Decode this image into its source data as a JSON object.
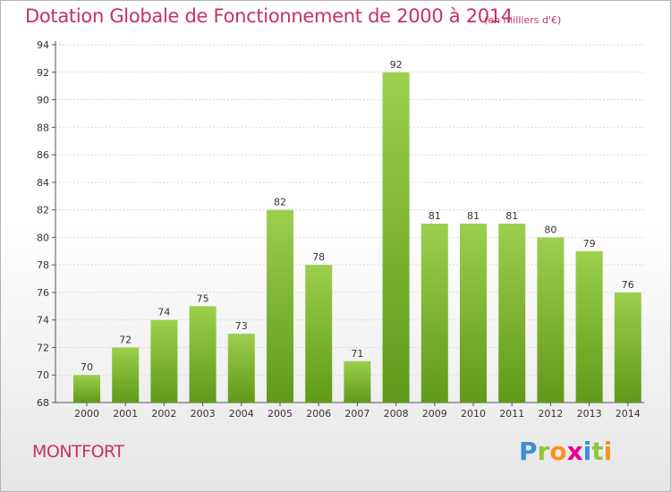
{
  "chart_data": {
    "type": "bar",
    "title": "Dotation Globale de Fonctionnement de 2000 à 2014",
    "subtitle": "(en milliers d'€)",
    "categories": [
      "2000",
      "2001",
      "2002",
      "2003",
      "2004",
      "2005",
      "2006",
      "2007",
      "2008",
      "2009",
      "2010",
      "2011",
      "2012",
      "2013",
      "2014"
    ],
    "values": [
      70,
      72,
      74,
      75,
      73,
      82,
      78,
      71,
      92,
      81,
      81,
      81,
      80,
      79,
      76
    ],
    "ylim": [
      68,
      94
    ],
    "yticks": [
      68,
      70,
      72,
      74,
      76,
      78,
      80,
      82,
      84,
      86,
      88,
      90,
      92,
      94
    ],
    "grid": true,
    "colors": {
      "bar_top": "#9ccf4d",
      "bar_bottom": "#5f9a18",
      "text": "#c8325a"
    }
  },
  "footer": {
    "town": "MONTFORT"
  },
  "logo": {
    "text": "Proxiti",
    "letters": [
      {
        "ch": "P",
        "color": "#3a8fd6"
      },
      {
        "ch": "r",
        "color": "#8dc63f"
      },
      {
        "ch": "o",
        "color": "#f7941d"
      },
      {
        "ch": "x",
        "color": "#ec008c"
      },
      {
        "ch": "i",
        "color": "#3a8fd6"
      },
      {
        "ch": "t",
        "color": "#8dc63f"
      },
      {
        "ch": "i",
        "color": "#f7941d"
      }
    ]
  }
}
